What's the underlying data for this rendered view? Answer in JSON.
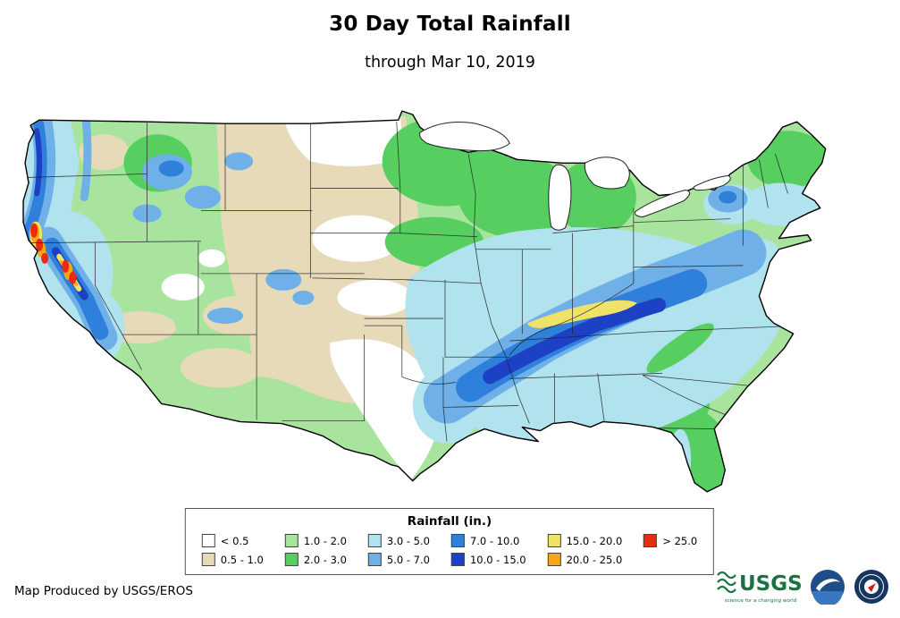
{
  "header": {
    "title": "30 Day Total Rainfall",
    "subtitle": "through Mar 10, 2019"
  },
  "legend": {
    "title": "Rainfall (in.)",
    "items": [
      {
        "label": "< 0.5",
        "color": "#FFFFFF"
      },
      {
        "label": "0.5 - 1.0",
        "color": "#E7DAB9"
      },
      {
        "label": "1.0 - 2.0",
        "color": "#A8E49E"
      },
      {
        "label": "2.0 - 3.0",
        "color": "#56CE60"
      },
      {
        "label": "3.0 - 5.0",
        "color": "#B1E3EF"
      },
      {
        "label": "5.0 - 7.0",
        "color": "#6FB0E8"
      },
      {
        "label": "7.0 - 10.0",
        "color": "#2F80DB"
      },
      {
        "label": "10.0 - 15.0",
        "color": "#1D41C4"
      },
      {
        "label": "15.0 - 20.0",
        "color": "#F0E268"
      },
      {
        "label": "20.0 - 25.0",
        "color": "#F7A51B"
      },
      {
        "label": "> 25.0",
        "color": "#EA2B0E"
      }
    ]
  },
  "footer": {
    "credit": "Map Produced by USGS/EROS"
  },
  "logos": {
    "usgs_text": "USGS",
    "usgs_tagline": "science for a changing world"
  }
}
